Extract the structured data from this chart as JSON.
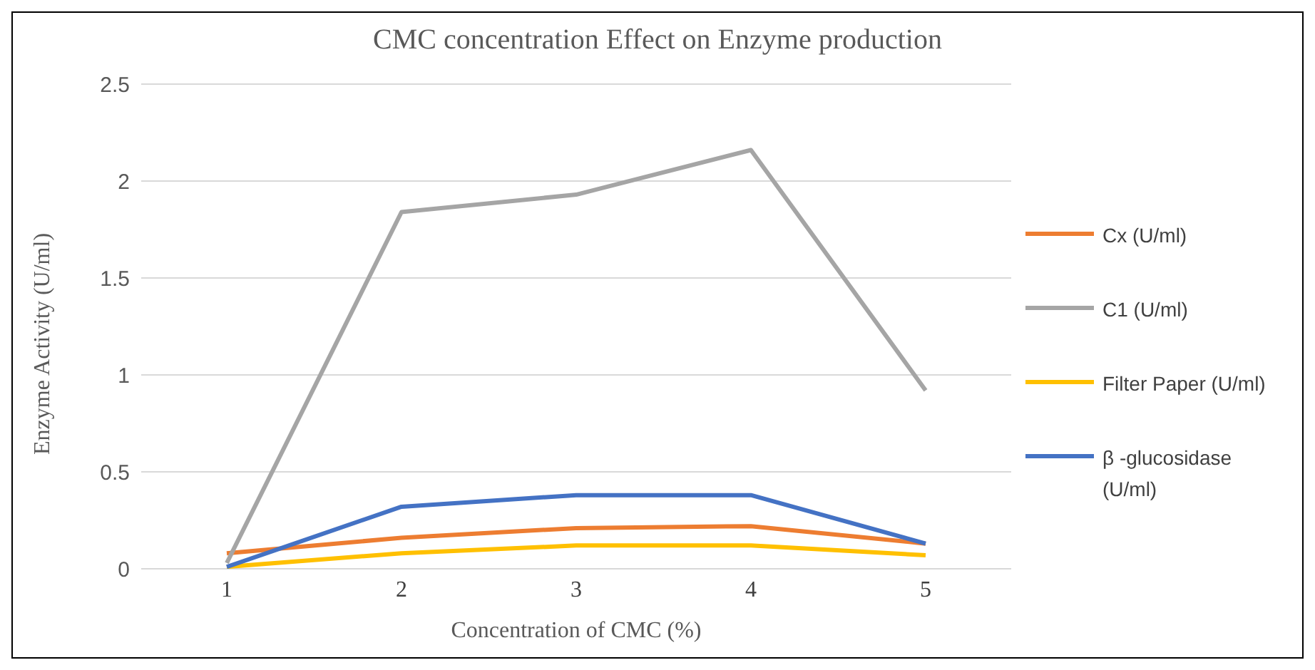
{
  "chart_data": {
    "type": "line",
    "title": "CMC concentration  Effect on Enzyme production",
    "xlabel": "Concentration of CMC (%)",
    "ylabel": "Enzyme Activity (U/ml)",
    "categories": [
      "1",
      "2",
      "3",
      "4",
      "5"
    ],
    "series": [
      {
        "name": "Cx (U/ml)",
        "color": "#ed7d31",
        "values": [
          0.08,
          0.16,
          0.21,
          0.22,
          0.13
        ]
      },
      {
        "name": "C1 (U/ml)",
        "color": "#a5a5a5",
        "values": [
          0.03,
          1.84,
          1.93,
          2.16,
          0.92
        ]
      },
      {
        "name": "Filter Paper (U/ml)",
        "color": "#ffc000",
        "values": [
          0.01,
          0.08,
          0.12,
          0.12,
          0.07
        ]
      },
      {
        "name": "β -glucosidase (U/ml)",
        "color": "#4472c4",
        "values": [
          0.01,
          0.32,
          0.38,
          0.38,
          0.13
        ]
      }
    ],
    "ylim": [
      0,
      2.5
    ],
    "yticks": [
      0,
      0.5,
      1,
      1.5,
      2,
      2.5
    ],
    "grid": "y",
    "legend": "right",
    "marker": "none",
    "line_style": "solid"
  }
}
